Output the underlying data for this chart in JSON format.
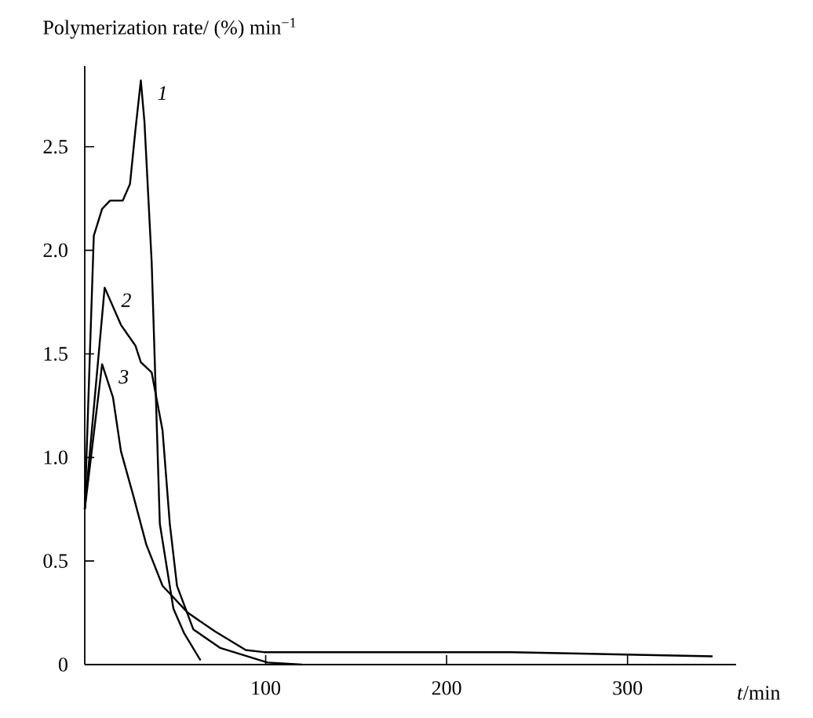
{
  "chart_data": {
    "type": "line",
    "ylabel": "Polymerization rate/ (%) min$^{−1}$",
    "xlabel": "*t*/min",
    "xlim": [
      0,
      360
    ],
    "ylim": [
      0,
      2.89
    ],
    "xticks": [
      100,
      200,
      300
    ],
    "yticks": [
      0,
      0.5,
      {
        "value": 1,
        "label": "1.0"
      },
      1.5,
      {
        "value": 2,
        "label": "2.0"
      },
      2.5
    ],
    "color": "#000000",
    "line_style": "solid",
    "marker": "none",
    "series": [
      {
        "name": "1",
        "x": [
          0,
          5,
          9.6,
          14,
          21,
          25,
          28,
          31,
          33,
          37,
          41.5,
          49,
          55,
          64
        ],
        "values": [
          0.75,
          2.07,
          2.2,
          2.24,
          2.24,
          2.32,
          2.58,
          2.82,
          2.62,
          1.94,
          0.68,
          0.27,
          0.15,
          0.02
        ]
      },
      {
        "name": "2",
        "x": [
          0,
          11,
          20,
          28,
          31,
          37,
          43,
          47,
          51,
          60,
          75,
          101,
          120
        ],
        "values": [
          0.75,
          1.82,
          1.64,
          1.54,
          1.46,
          1.41,
          1.13,
          0.68,
          0.38,
          0.17,
          0.08,
          0.01,
          0
        ]
      },
      {
        "name": "3",
        "x": [
          0,
          9.6,
          15.6,
          20,
          27,
          34,
          43,
          57,
          72,
          89,
          99,
          236,
          347
        ],
        "values": [
          0.75,
          1.45,
          1.29,
          1.03,
          0.81,
          0.58,
          0.38,
          0.25,
          0.16,
          0.07,
          0.06,
          0.06,
          0.04
        ]
      }
    ]
  }
}
